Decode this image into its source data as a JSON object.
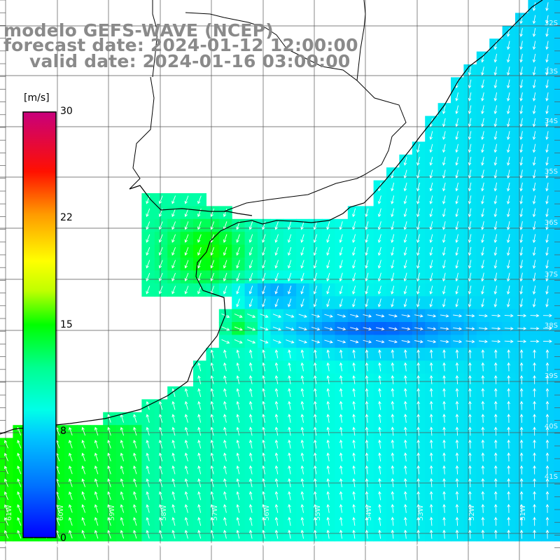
{
  "title": {
    "line1": "modelo GEFS-WAVE (NCEP)",
    "line2": "forecast date: 2024-01-12 12:00:00",
    "line3": "valid date: 2024-01-16 03:00:00"
  },
  "colorbar": {
    "unit": "[m/s]",
    "ticks": [
      "30",
      "22",
      "15",
      "8",
      "0"
    ],
    "colors": [
      "#0000ff",
      "#0080ff",
      "#00d8ff",
      "#00ffb0",
      "#00ff00",
      "#a0ff00",
      "#ffff00",
      "#ffa000",
      "#ff2000",
      "#c8007c"
    ]
  },
  "grid": {
    "lat_labels": [
      "32S",
      "33S",
      "34S",
      "35S",
      "36S",
      "37S",
      "38S",
      "39S",
      "40S",
      "41S"
    ],
    "lon_labels": [
      "61W",
      "60W",
      "59W",
      "58W",
      "57W",
      "56W",
      "55W",
      "54W",
      "53W",
      "52W",
      "51W"
    ]
  },
  "colors": {
    "land": "#ffffff",
    "coast": "#000000",
    "gridline": "#555555",
    "arrow": "#ffffff"
  }
}
